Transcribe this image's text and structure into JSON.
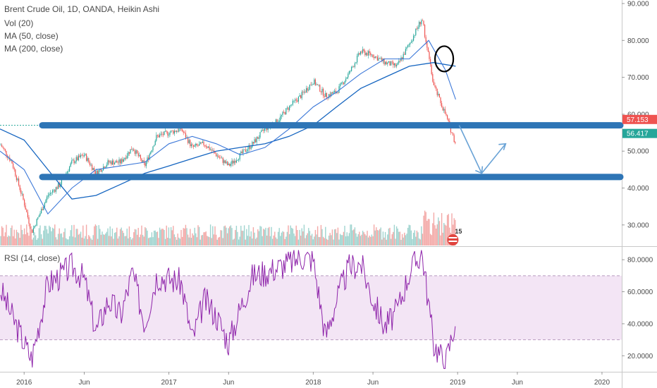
{
  "legend": {
    "title": "Brent Crude Oil, 1D, OANDA, Heikin Ashi",
    "vol": "Vol (20)",
    "ma50": "MA (50, close)",
    "ma200": "MA (200, close)",
    "rsi": "RSI (14, close)"
  },
  "price_tags": {
    "upper": "57.153",
    "lower": "56.417"
  },
  "event_badge": "15",
  "colors": {
    "up": "#26a69a",
    "down": "#ef5350",
    "ma50": "#3c78d8",
    "ma200": "#1565c0",
    "hline": "#2e75b6",
    "arrow": "#6aa3d6",
    "rsi_line": "#8e24aa",
    "rsi_band": "#f3e5f5",
    "circle": "#000000"
  },
  "chart_data": [
    {
      "type": "candlestick",
      "title": "Brent Crude Oil, 1D, OANDA, Heikin Ashi",
      "x_ticks": [
        "2016",
        "Jun",
        "2017",
        "Jun",
        "2018",
        "Jun",
        "2019",
        "Jun",
        "2020"
      ],
      "y_ticks": [
        "30.000",
        "40.000",
        "50.000",
        "60.000",
        "70.000",
        "80.000",
        "90.000"
      ],
      "ylim": [
        25,
        90
      ],
      "series": [
        {
          "name": "Brent Crude Oil",
          "x": [
            "2015-11-01",
            "2015-12-01",
            "2016-01-01",
            "2016-01-20",
            "2016-03-01",
            "2016-04-01",
            "2016-05-01",
            "2016-06-01",
            "2016-07-01",
            "2016-08-01",
            "2016-09-01",
            "2016-10-01",
            "2016-11-01",
            "2016-12-01",
            "2017-01-01",
            "2017-02-01",
            "2017-03-01",
            "2017-04-01",
            "2017-05-01",
            "2017-06-01",
            "2017-07-01",
            "2017-08-01",
            "2017-09-01",
            "2017-10-01",
            "2017-11-01",
            "2017-12-01",
            "2018-01-01",
            "2018-02-01",
            "2018-03-01",
            "2018-04-01",
            "2018-05-01",
            "2018-06-01",
            "2018-07-01",
            "2018-08-01",
            "2018-09-01",
            "2018-10-03",
            "2018-11-01",
            "2018-12-01",
            "2018-12-27"
          ],
          "values": [
            52,
            47,
            36,
            28,
            38,
            41,
            47,
            49,
            44,
            47,
            47,
            51,
            46,
            54,
            55,
            56,
            51,
            52,
            49,
            46,
            49,
            52,
            56,
            58,
            62,
            65,
            69,
            65,
            66,
            71,
            77,
            76,
            74,
            73,
            79,
            86,
            68,
            60,
            52
          ]
        },
        {
          "name": "MA (50, close)",
          "x": [
            "2015-11-01",
            "2016-01-01",
            "2016-03-01",
            "2016-05-01",
            "2016-07-01",
            "2016-09-01",
            "2016-11-01",
            "2017-01-01",
            "2017-03-01",
            "2017-05-01",
            "2017-07-01",
            "2017-09-01",
            "2017-11-01",
            "2018-01-01",
            "2018-03-01",
            "2018-05-01",
            "2018-07-01",
            "2018-09-01",
            "2018-10-20",
            "2018-12-01",
            "2018-12-27"
          ],
          "values": [
            50,
            45,
            33,
            40,
            45,
            46,
            47,
            52,
            54,
            52,
            49,
            51,
            56,
            62,
            66,
            71,
            75,
            75,
            80,
            72,
            64
          ]
        },
        {
          "name": "MA (200, close)",
          "x": [
            "2015-11-01",
            "2016-01-01",
            "2016-03-01",
            "2016-05-01",
            "2016-07-01",
            "2016-09-01",
            "2016-11-01",
            "2017-01-01",
            "2017-03-01",
            "2017-05-01",
            "2017-07-01",
            "2017-09-01",
            "2017-11-01",
            "2018-01-01",
            "2018-03-01",
            "2018-05-01",
            "2018-07-01",
            "2018-09-01",
            "2018-11-01",
            "2018-12-27"
          ],
          "values": [
            56,
            53,
            45,
            37,
            38,
            41,
            44,
            46,
            48,
            50,
            51,
            52,
            54,
            57,
            62,
            67,
            70,
            73,
            74,
            73
          ]
        }
      ],
      "horizontal_levels": [
        57.0,
        43.0
      ]
    },
    {
      "type": "line",
      "title": "RSI (14, close)",
      "y_ticks": [
        "20.0000",
        "40.0000",
        "60.0000",
        "80.0000"
      ],
      "ylim": [
        10,
        88
      ],
      "bands": [
        30,
        70
      ],
      "series": [
        {
          "name": "RSI (14, close)",
          "x": [
            "2015-11-01",
            "2015-12-01",
            "2016-01-01",
            "2016-01-20",
            "2016-03-01",
            "2016-04-01",
            "2016-05-01",
            "2016-06-01",
            "2016-07-01",
            "2016-08-01",
            "2016-09-01",
            "2016-10-01",
            "2016-11-01",
            "2016-12-01",
            "2017-01-01",
            "2017-02-01",
            "2017-03-01",
            "2017-04-01",
            "2017-05-01",
            "2017-06-01",
            "2017-07-01",
            "2017-08-01",
            "2017-09-01",
            "2017-10-01",
            "2017-11-01",
            "2017-12-01",
            "2018-01-01",
            "2018-02-01",
            "2018-03-01",
            "2018-04-01",
            "2018-05-01",
            "2018-06-01",
            "2018-07-01",
            "2018-08-01",
            "2018-09-01",
            "2018-10-03",
            "2018-11-01",
            "2018-12-01",
            "2018-12-27"
          ],
          "values": [
            62,
            45,
            28,
            18,
            65,
            70,
            76,
            68,
            35,
            55,
            45,
            72,
            40,
            70,
            68,
            66,
            30,
            55,
            45,
            28,
            50,
            70,
            72,
            75,
            78,
            82,
            80,
            32,
            55,
            75,
            78,
            55,
            38,
            48,
            72,
            85,
            28,
            15,
            42
          ]
        }
      ]
    }
  ]
}
